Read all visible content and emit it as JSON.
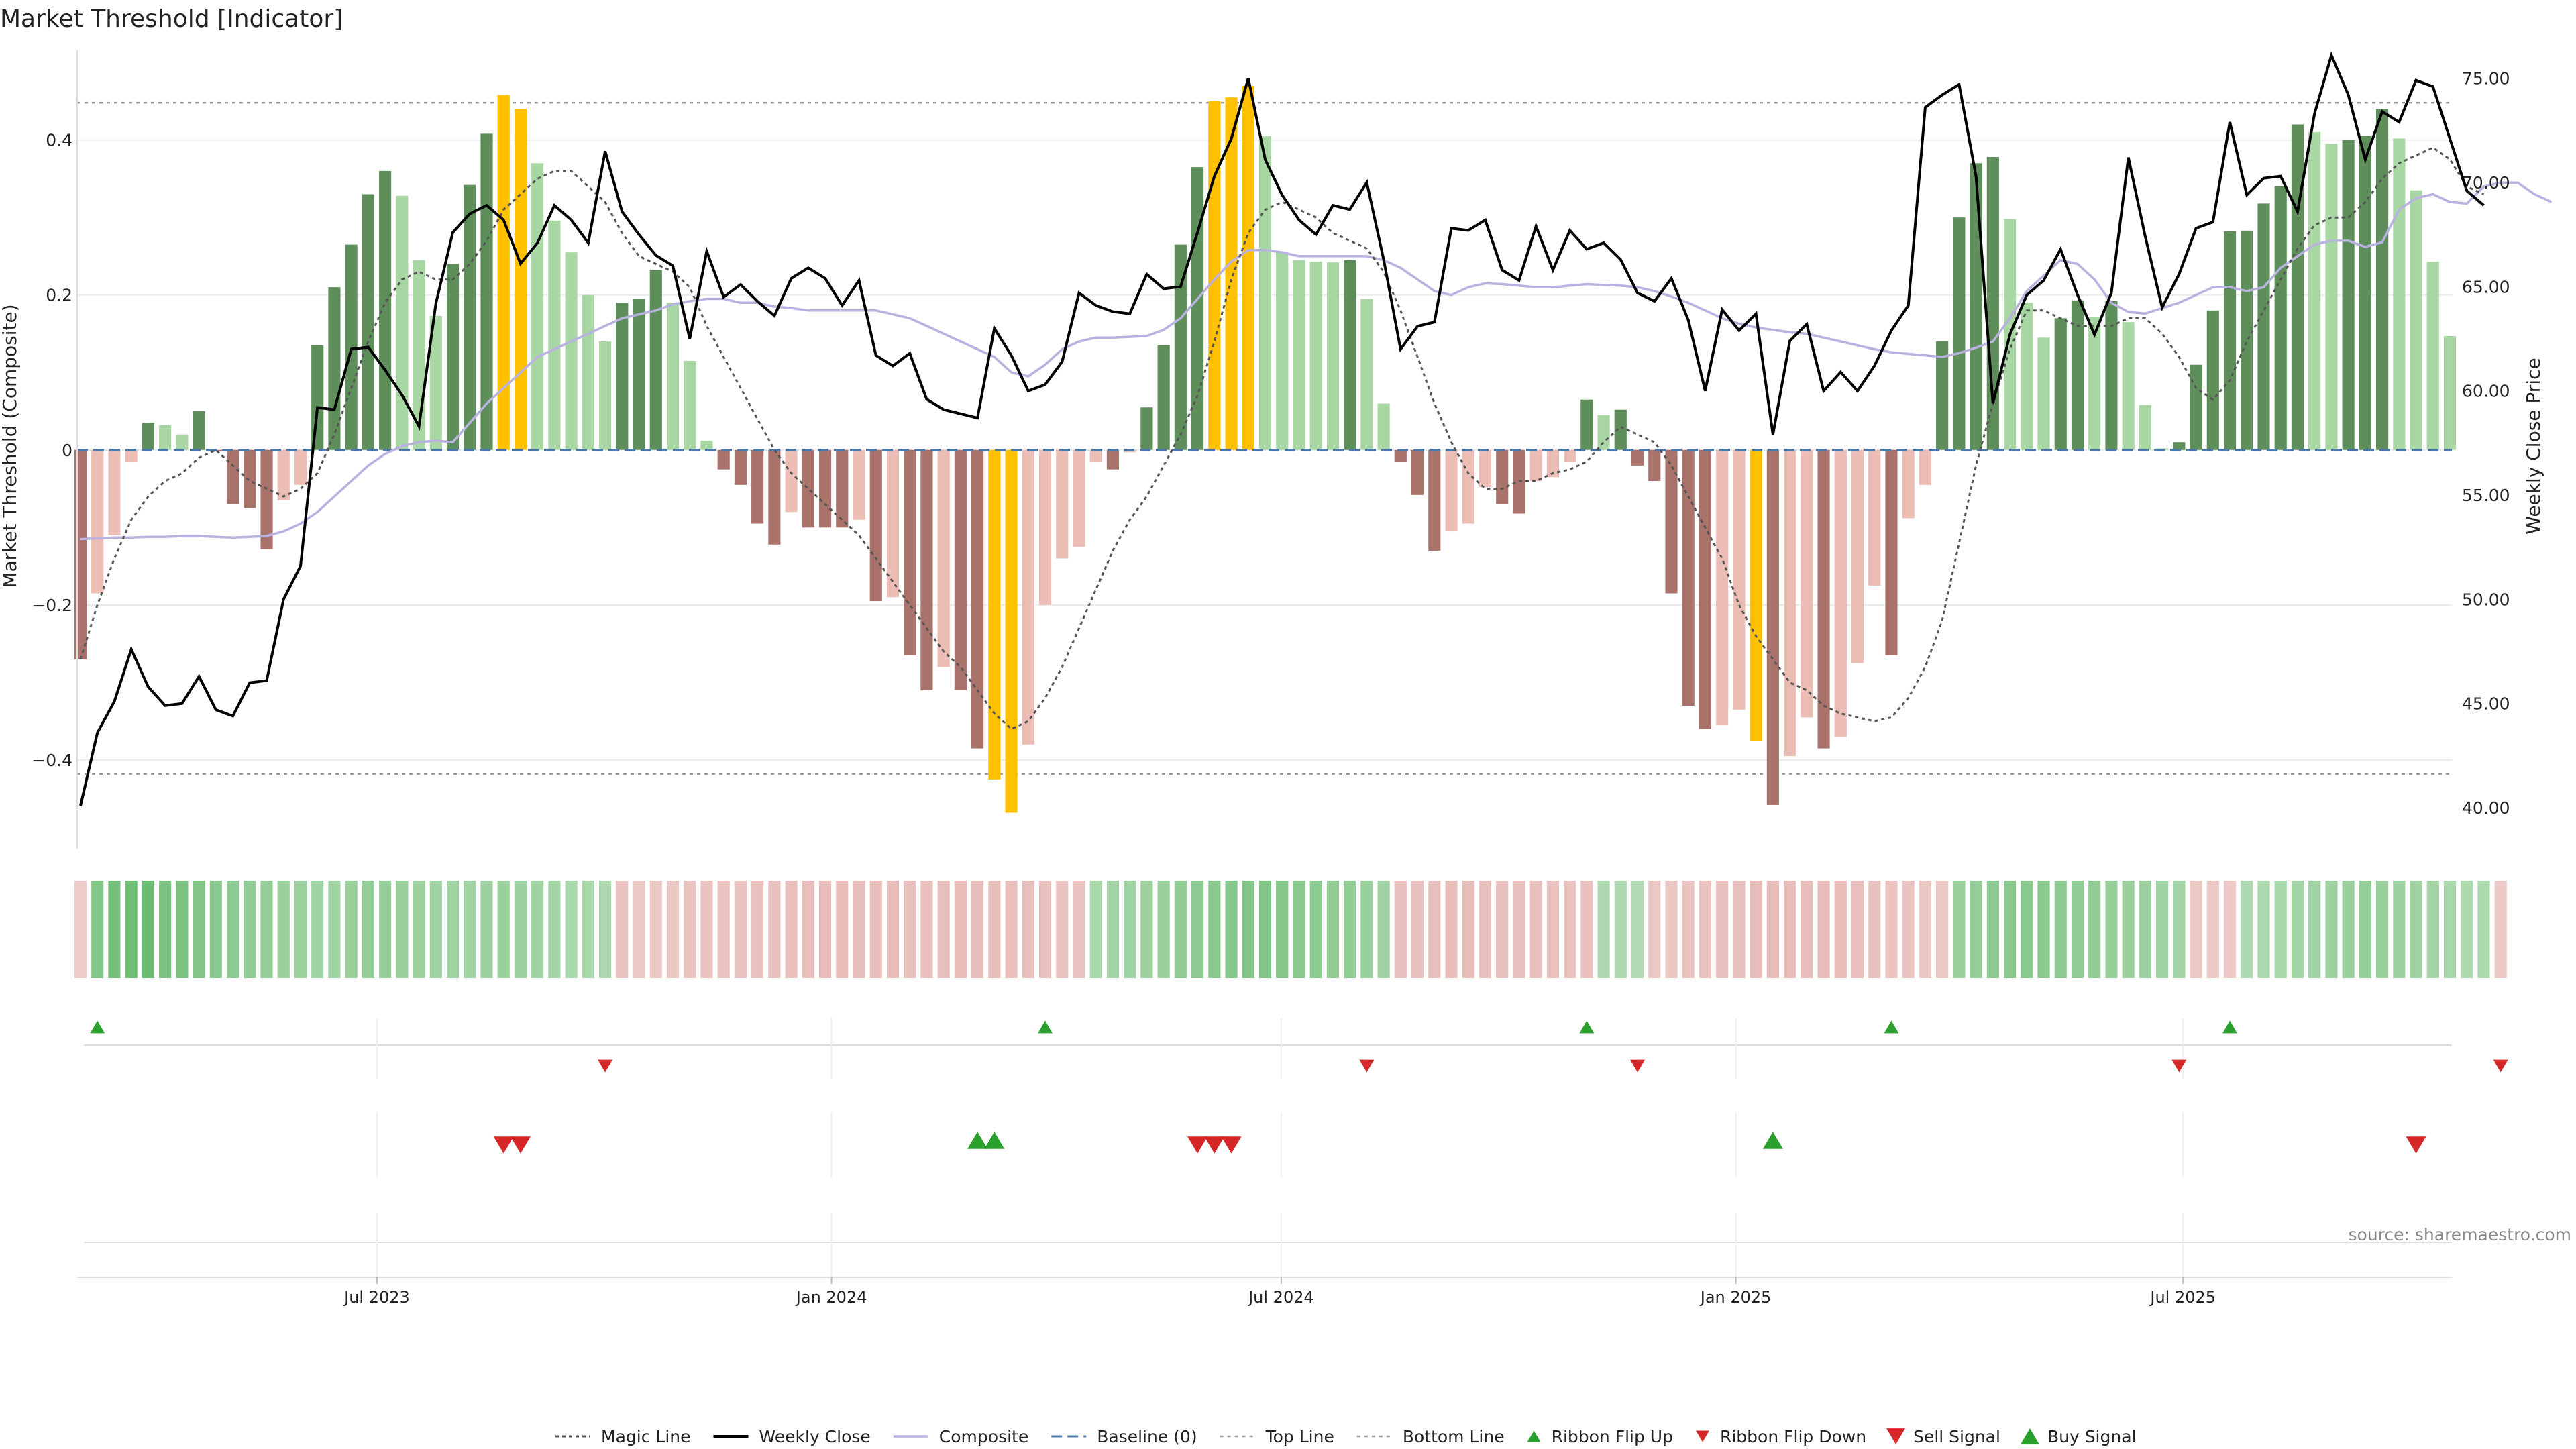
{
  "title": "Market Threshold [Indicator]",
  "source_note": "source: sharemaestro.com",
  "colors": {
    "buy_light": "#a9d7a3",
    "buy_dark": "#5e8f5b",
    "sell_light": "#ecbdb5",
    "sell_dark": "#a9736c",
    "extreme": "#ffc000",
    "weekly_close": "#000000",
    "composite": "#b9b2e0",
    "magic_line": "#555555",
    "baseline": "#4c78a8",
    "threshold_line": "#999999",
    "signal_up": "#2ca02c",
    "signal_down": "#d62728"
  },
  "chart_data": {
    "type": "bar",
    "title": "Market Threshold [Indicator]",
    "ylabel_left": "Market Threshold (Composite)",
    "ylabel_right": "Weekly Close Price",
    "ylim_left": [
      -0.51,
      0.52
    ],
    "ylim_right": [
      38.2,
      76.5
    ],
    "yticks_left": [
      {
        "v": 0.4,
        "label": "0.4"
      },
      {
        "v": 0.2,
        "label": "0.2"
      },
      {
        "v": 0,
        "label": "0"
      },
      {
        "v": -0.2,
        "label": "−0.2"
      },
      {
        "v": -0.4,
        "label": "−0.4"
      }
    ],
    "yticks_right": [
      "75.00",
      "70.00",
      "65.00",
      "60.00",
      "55.00",
      "50.00",
      "45.00",
      "40.00"
    ],
    "x_dates": [
      "2023-03-03",
      "2025-10-17"
    ],
    "xticks": [
      {
        "date": "2023-07-01",
        "label": "Jul 2023"
      },
      {
        "date": "2024-01-01",
        "label": "Jan 2024"
      },
      {
        "date": "2024-07-01",
        "label": "Jul 2024"
      },
      {
        "date": "2025-01-01",
        "label": "Jan 2025"
      },
      {
        "date": "2025-07-01",
        "label": "Jul 2025"
      }
    ],
    "top_line": 0.448,
    "bottom_line": -0.418,
    "baseline": 0,
    "composite_bars": [
      -0.27,
      -0.185,
      -0.11,
      -0.015,
      0.035,
      0.032,
      0.02,
      0.05,
      -0.002,
      -0.07,
      -0.075,
      -0.128,
      -0.065,
      -0.045,
      0.135,
      0.21,
      0.265,
      0.33,
      0.36,
      0.328,
      0.245,
      0.173,
      0.24,
      0.342,
      0.408,
      0.458,
      0.44,
      0.37,
      0.296,
      0.255,
      0.2,
      0.14,
      0.19,
      0.195,
      0.232,
      0.19,
      0.115,
      0.012,
      -0.025,
      -0.045,
      -0.095,
      -0.122,
      -0.08,
      -0.1,
      -0.1,
      -0.1,
      -0.09,
      -0.195,
      -0.19,
      -0.265,
      -0.31,
      -0.28,
      -0.31,
      -0.385,
      -0.425,
      -0.468,
      -0.38,
      -0.2,
      -0.14,
      -0.125,
      -0.015,
      -0.025,
      -0.003,
      0.055,
      0.135,
      0.265,
      0.365,
      0.45,
      0.455,
      0.47,
      0.405,
      0.255,
      0.245,
      0.243,
      0.242,
      0.245,
      0.195,
      0.06,
      -0.015,
      -0.058,
      -0.13,
      -0.105,
      -0.095,
      -0.048,
      -0.07,
      -0.082,
      -0.04,
      -0.035,
      -0.015,
      0.065,
      0.045,
      0.052,
      -0.02,
      -0.04,
      -0.185,
      -0.33,
      -0.36,
      -0.355,
      -0.335,
      -0.375,
      -0.458,
      -0.395,
      -0.345,
      -0.385,
      -0.37,
      -0.275,
      -0.175,
      -0.265,
      -0.088,
      -0.045,
      0.14,
      0.3,
      0.37,
      0.378,
      0.298,
      0.19,
      0.145,
      0.17,
      0.193,
      0.172,
      0.192,
      0.165,
      0.058,
      0.002,
      0.01,
      0.11,
      0.18,
      0.282,
      0.283,
      0.318,
      0.34,
      0.42,
      0.41,
      0.395,
      0.4,
      0.405,
      0.44,
      0.402,
      0.335,
      0.243,
      0.147
    ],
    "extreme_bars": [
      25,
      26,
      54,
      55,
      67,
      68,
      69,
      99
    ],
    "weekly_close": [
      40.1,
      43.6,
      45.1,
      47.6,
      45.8,
      44.9,
      45.0,
      46.3,
      44.7,
      44.4,
      46.0,
      46.1,
      50.0,
      51.6,
      59.2,
      59.1,
      62.0,
      62.1,
      61.0,
      59.8,
      58.3,
      64.2,
      67.6,
      68.5,
      68.9,
      68.2,
      66.1,
      67.1,
      68.9,
      68.2,
      67.1,
      71.5,
      68.6,
      67.5,
      66.5,
      66.0,
      62.5,
      66.7,
      64.5,
      65.1,
      64.3,
      63.6,
      65.4,
      65.9,
      65.4,
      64.1,
      65.3,
      61.7,
      61.2,
      61.8,
      59.6,
      59.1,
      58.9,
      58.7,
      63.0,
      61.7,
      60.0,
      60.3,
      61.4,
      64.7,
      64.1,
      63.8,
      63.7,
      65.6,
      64.9,
      65.0,
      67.6,
      70.3,
      72.1,
      75.0,
      71.1,
      69.4,
      68.2,
      67.5,
      68.9,
      68.7,
      70.0,
      66.3,
      62.0,
      63.1,
      63.3,
      67.8,
      67.7,
      68.2,
      65.8,
      65.3,
      67.9,
      65.8,
      67.7,
      66.8,
      67.1,
      66.3,
      64.7,
      64.3,
      65.4,
      63.4,
      60.0,
      63.9,
      62.9,
      63.7,
      57.9,
      62.4,
      63.2,
      60.0,
      60.9,
      60.0,
      61.2,
      62.9,
      64.1,
      73.6,
      74.2,
      74.7,
      70.3,
      59.4,
      62.7,
      64.6,
      65.3,
      66.8,
      64.6,
      62.7,
      64.7,
      71.2,
      67.4,
      64.0,
      65.6,
      67.8,
      68.1,
      72.9,
      69.4,
      70.2,
      70.3,
      68.6,
      73.3,
      76.1,
      74.2,
      71.1,
      73.4,
      72.9,
      74.9,
      74.6,
      72.1,
      69.6,
      68.9
    ],
    "composite_line": [
      -0.115,
      -0.114,
      -0.113,
      -0.113,
      -0.112,
      -0.112,
      -0.111,
      -0.111,
      -0.112,
      -0.113,
      -0.112,
      -0.111,
      -0.105,
      -0.095,
      -0.08,
      -0.06,
      -0.04,
      -0.02,
      -0.005,
      0.005,
      0.01,
      0.012,
      0.01,
      0.035,
      0.06,
      0.08,
      0.1,
      0.12,
      0.13,
      0.14,
      0.15,
      0.16,
      0.17,
      0.175,
      0.18,
      0.188,
      0.192,
      0.195,
      0.195,
      0.19,
      0.19,
      0.185,
      0.183,
      0.18,
      0.18,
      0.18,
      0.18,
      0.18,
      0.175,
      0.17,
      0.16,
      0.15,
      0.14,
      0.13,
      0.12,
      0.1,
      0.095,
      0.11,
      0.13,
      0.14,
      0.145,
      0.145,
      0.146,
      0.147,
      0.155,
      0.17,
      0.195,
      0.22,
      0.243,
      0.258,
      0.258,
      0.255,
      0.25,
      0.25,
      0.25,
      0.25,
      0.25,
      0.245,
      0.235,
      0.22,
      0.205,
      0.2,
      0.21,
      0.215,
      0.214,
      0.212,
      0.21,
      0.21,
      0.212,
      0.214,
      0.213,
      0.212,
      0.21,
      0.205,
      0.198,
      0.19,
      0.18,
      0.17,
      0.163,
      0.158,
      0.155,
      0.152,
      0.15,
      0.145,
      0.14,
      0.135,
      0.13,
      0.126,
      0.124,
      0.122,
      0.12,
      0.125,
      0.132,
      0.14,
      0.17,
      0.205,
      0.225,
      0.245,
      0.24,
      0.22,
      0.19,
      0.178,
      0.176,
      0.183,
      0.19,
      0.2,
      0.21,
      0.21,
      0.205,
      0.21,
      0.235,
      0.25,
      0.265,
      0.27,
      0.27,
      0.262,
      0.268,
      0.31,
      0.325,
      0.33,
      0.32,
      0.318,
      0.34,
      0.345,
      0.345,
      0.33,
      0.32
    ],
    "magic_line": [
      -0.27,
      -0.2,
      -0.14,
      -0.09,
      -0.06,
      -0.04,
      -0.03,
      -0.01,
      0.0,
      -0.02,
      -0.04,
      -0.05,
      -0.06,
      -0.05,
      -0.03,
      0.02,
      0.08,
      0.14,
      0.19,
      0.22,
      0.23,
      0.22,
      0.22,
      0.24,
      0.27,
      0.31,
      0.33,
      0.35,
      0.36,
      0.36,
      0.34,
      0.32,
      0.28,
      0.25,
      0.24,
      0.23,
      0.21,
      0.16,
      0.12,
      0.08,
      0.04,
      0.0,
      -0.03,
      -0.05,
      -0.07,
      -0.09,
      -0.11,
      -0.14,
      -0.17,
      -0.2,
      -0.23,
      -0.26,
      -0.28,
      -0.31,
      -0.34,
      -0.36,
      -0.35,
      -0.32,
      -0.28,
      -0.23,
      -0.18,
      -0.13,
      -0.09,
      -0.06,
      -0.02,
      0.02,
      0.07,
      0.14,
      0.22,
      0.28,
      0.31,
      0.32,
      0.31,
      0.3,
      0.28,
      0.27,
      0.26,
      0.23,
      0.18,
      0.12,
      0.06,
      0.01,
      -0.03,
      -0.05,
      -0.05,
      -0.04,
      -0.04,
      -0.03,
      -0.025,
      -0.015,
      0.01,
      0.03,
      0.02,
      0.01,
      -0.02,
      -0.06,
      -0.1,
      -0.14,
      -0.2,
      -0.24,
      -0.27,
      -0.3,
      -0.31,
      -0.33,
      -0.34,
      -0.345,
      -0.35,
      -0.345,
      -0.32,
      -0.28,
      -0.22,
      -0.12,
      -0.02,
      0.06,
      0.13,
      0.18,
      0.18,
      0.17,
      0.16,
      0.16,
      0.16,
      0.17,
      0.17,
      0.15,
      0.12,
      0.08,
      0.065,
      0.09,
      0.14,
      0.18,
      0.22,
      0.26,
      0.29,
      0.3,
      0.3,
      0.32,
      0.35,
      0.37,
      0.38,
      0.39,
      0.375,
      0.34,
      0.33
    ],
    "ribbon": [
      -0.15,
      0.5,
      0.6,
      0.62,
      0.65,
      0.55,
      0.55,
      0.5,
      0.45,
      0.42,
      0.4,
      0.38,
      0.35,
      0.33,
      0.3,
      0.3,
      0.35,
      0.38,
      0.38,
      0.35,
      0.32,
      0.3,
      0.3,
      0.3,
      0.32,
      0.35,
      0.32,
      0.3,
      0.28,
      0.25,
      0.25,
      0.22,
      -0.25,
      -0.2,
      -0.2,
      -0.22,
      -0.25,
      -0.25,
      -0.25,
      -0.28,
      -0.3,
      -0.3,
      -0.32,
      -0.32,
      -0.35,
      -0.35,
      -0.33,
      -0.35,
      -0.33,
      -0.32,
      -0.3,
      -0.32,
      -0.35,
      -0.35,
      -0.33,
      -0.32,
      -0.32,
      -0.3,
      -0.28,
      -0.25,
      0.25,
      0.28,
      0.3,
      0.32,
      0.35,
      0.4,
      0.42,
      0.45,
      0.48,
      0.5,
      0.5,
      0.48,
      0.45,
      0.42,
      0.4,
      0.4,
      0.35,
      0.3,
      -0.3,
      -0.3,
      -0.32,
      -0.33,
      -0.33,
      -0.32,
      -0.3,
      -0.3,
      -0.3,
      -0.28,
      -0.28,
      -0.3,
      0.22,
      0.2,
      0.18,
      -0.2,
      -0.22,
      -0.25,
      -0.28,
      -0.3,
      -0.32,
      -0.35,
      -0.35,
      -0.35,
      -0.35,
      -0.35,
      -0.35,
      -0.32,
      -0.3,
      -0.28,
      -0.25,
      -0.22,
      -0.2,
      0.35,
      0.38,
      0.42,
      0.45,
      0.45,
      0.45,
      0.42,
      0.4,
      0.4,
      0.38,
      0.35,
      0.33,
      0.3,
      0.28,
      -0.2,
      -0.2,
      -0.18,
      0.2,
      0.22,
      0.25,
      0.28,
      0.3,
      0.32,
      0.35,
      0.38,
      0.35,
      0.32,
      0.3,
      0.28,
      0.25,
      0.22,
      0.22,
      -0.18
    ],
    "ribbon_flip_up": [
      1,
      57,
      89,
      107,
      127
    ],
    "ribbon_flip_down": [
      31,
      76,
      92,
      124,
      143
    ],
    "sell_signals": [
      25,
      26,
      66,
      67,
      68,
      138
    ],
    "buy_signals": [
      53,
      54,
      100
    ],
    "legend": [
      "Magic Line",
      "Weekly Close",
      "Composite",
      "Baseline (0)",
      "Top Line",
      "Bottom Line",
      "Ribbon Flip Up",
      "Ribbon Flip Down",
      "Sell Signal",
      "Buy Signal"
    ],
    "legend_position": "bottom-center"
  }
}
